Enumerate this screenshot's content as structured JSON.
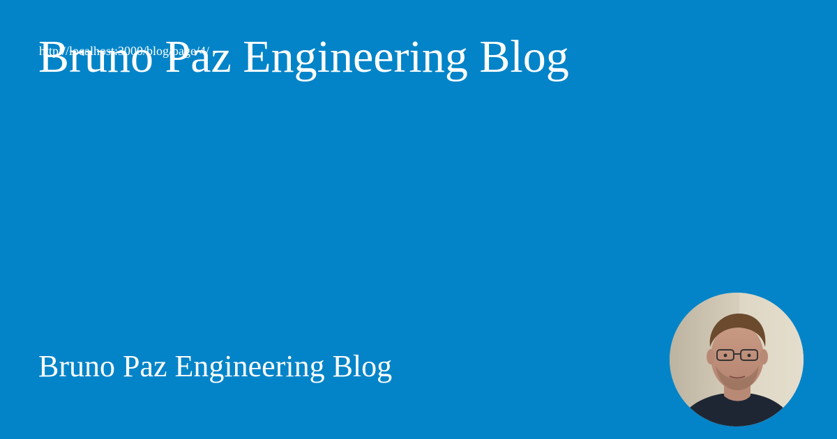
{
  "page": {
    "url": "http://localhost:3000/blog/page/4/",
    "title": "Bruno Paz Engineering Blog",
    "footer_name": "Bruno Paz Engineering Blog"
  },
  "colors": {
    "background": "#0384c8",
    "text": "#ffffff"
  }
}
